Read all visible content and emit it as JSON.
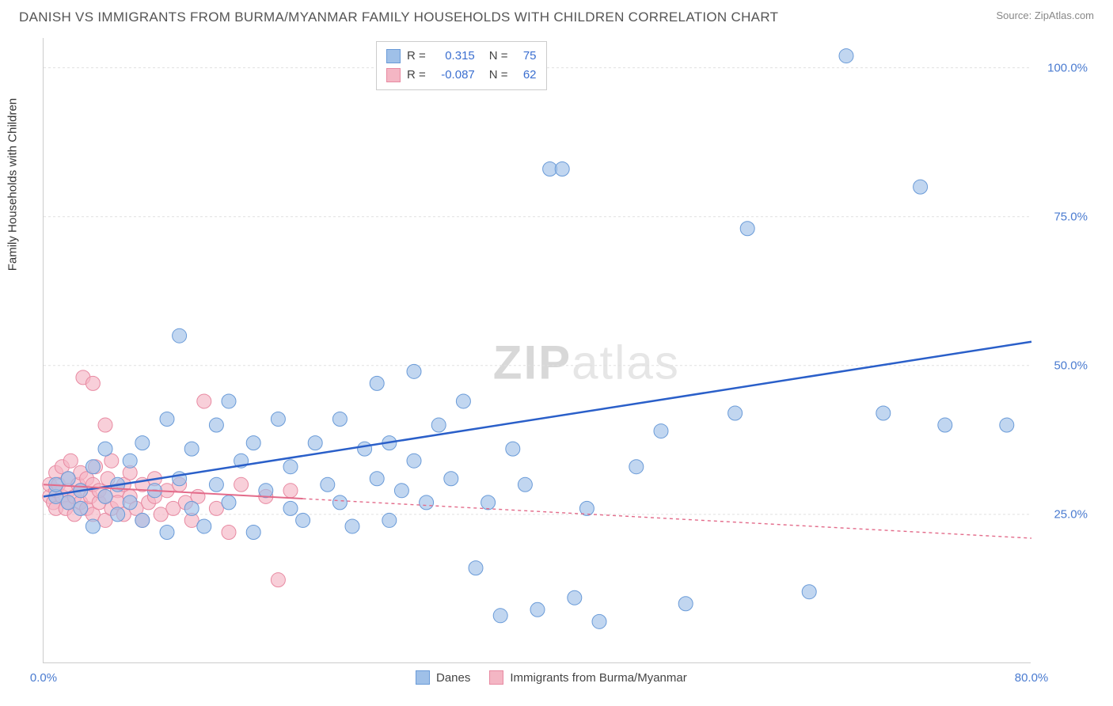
{
  "header": {
    "title": "DANISH VS IMMIGRANTS FROM BURMA/MYANMAR FAMILY HOUSEHOLDS WITH CHILDREN CORRELATION CHART",
    "source": "Source: ZipAtlas.com"
  },
  "chart": {
    "type": "scatter",
    "ylabel": "Family Households with Children",
    "watermark_a": "ZIP",
    "watermark_b": "atlas",
    "xlim": [
      0,
      80
    ],
    "ylim": [
      0,
      105
    ],
    "y_ticks": [
      25,
      50,
      75,
      100
    ],
    "y_tick_labels": [
      "25.0%",
      "50.0%",
      "75.0%",
      "100.0%"
    ],
    "x_ticks": [
      0,
      80
    ],
    "x_tick_labels": [
      "0.0%",
      "80.0%"
    ],
    "background_color": "#ffffff",
    "grid_color": "#e0e0e0",
    "axis_color": "#cccccc",
    "tick_label_color": "#4a7bd0",
    "series": [
      {
        "name": "Danes",
        "marker_color": "#9fc0e8",
        "marker_stroke": "#6a9bd8",
        "marker_opacity": 0.65,
        "marker_radius": 9,
        "line_color": "#2a5fc9",
        "line_width": 2.5,
        "line_dash": "none",
        "R": "0.315",
        "N": "75",
        "trend": {
          "x1": 0,
          "y1": 28,
          "x2": 80,
          "y2": 54,
          "x_solid_end": 80
        },
        "points": [
          [
            1,
            28
          ],
          [
            1,
            30
          ],
          [
            2,
            27
          ],
          [
            2,
            31
          ],
          [
            3,
            29
          ],
          [
            3,
            26
          ],
          [
            4,
            33
          ],
          [
            4,
            23
          ],
          [
            5,
            28
          ],
          [
            5,
            36
          ],
          [
            6,
            30
          ],
          [
            6,
            25
          ],
          [
            7,
            34
          ],
          [
            7,
            27
          ],
          [
            8,
            24
          ],
          [
            8,
            37
          ],
          [
            9,
            29
          ],
          [
            10,
            41
          ],
          [
            10,
            22
          ],
          [
            11,
            55
          ],
          [
            11,
            31
          ],
          [
            12,
            26
          ],
          [
            12,
            36
          ],
          [
            13,
            23
          ],
          [
            14,
            40
          ],
          [
            14,
            30
          ],
          [
            15,
            27
          ],
          [
            15,
            44
          ],
          [
            16,
            34
          ],
          [
            17,
            22
          ],
          [
            17,
            37
          ],
          [
            18,
            29
          ],
          [
            19,
            41
          ],
          [
            20,
            26
          ],
          [
            20,
            33
          ],
          [
            21,
            24
          ],
          [
            22,
            37
          ],
          [
            23,
            30
          ],
          [
            24,
            27
          ],
          [
            24,
            41
          ],
          [
            25,
            23
          ],
          [
            26,
            36
          ],
          [
            27,
            47
          ],
          [
            27,
            31
          ],
          [
            28,
            24
          ],
          [
            28,
            37
          ],
          [
            29,
            29
          ],
          [
            30,
            34
          ],
          [
            30,
            49
          ],
          [
            31,
            27
          ],
          [
            32,
            40
          ],
          [
            33,
            31
          ],
          [
            34,
            44
          ],
          [
            35,
            16
          ],
          [
            36,
            27
          ],
          [
            37,
            8
          ],
          [
            38,
            36
          ],
          [
            39,
            30
          ],
          [
            40,
            9
          ],
          [
            41,
            83
          ],
          [
            42,
            83
          ],
          [
            43,
            11
          ],
          [
            44,
            26
          ],
          [
            45,
            7
          ],
          [
            48,
            33
          ],
          [
            50,
            39
          ],
          [
            52,
            10
          ],
          [
            56,
            42
          ],
          [
            57,
            73
          ],
          [
            62,
            12
          ],
          [
            65,
            102
          ],
          [
            68,
            42
          ],
          [
            71,
            80
          ],
          [
            73,
            40
          ],
          [
            78,
            40
          ]
        ]
      },
      {
        "name": "Immigrants from Burma/Myanmar",
        "marker_color": "#f4b6c4",
        "marker_stroke": "#e88aa2",
        "marker_opacity": 0.65,
        "marker_radius": 9,
        "line_color": "#e36b8a",
        "line_width": 2,
        "line_dash": "4,4",
        "R": "-0.087",
        "N": "62",
        "trend": {
          "x1": 0,
          "y1": 30,
          "x2": 80,
          "y2": 21,
          "x_solid_end": 21
        },
        "points": [
          [
            0.5,
            28
          ],
          [
            0.5,
            30
          ],
          [
            0.8,
            27
          ],
          [
            1,
            29
          ],
          [
            1,
            32
          ],
          [
            1,
            26
          ],
          [
            1.2,
            30
          ],
          [
            1.5,
            28
          ],
          [
            1.5,
            33
          ],
          [
            1.8,
            26
          ],
          [
            2,
            29
          ],
          [
            2,
            31
          ],
          [
            2,
            27
          ],
          [
            2.2,
            34
          ],
          [
            2.5,
            28
          ],
          [
            2.5,
            25
          ],
          [
            2.8,
            30
          ],
          [
            3,
            32
          ],
          [
            3,
            27
          ],
          [
            3,
            29
          ],
          [
            3.2,
            48
          ],
          [
            3.5,
            26
          ],
          [
            3.5,
            31
          ],
          [
            3.8,
            28
          ],
          [
            4,
            47
          ],
          [
            4,
            30
          ],
          [
            4,
            25
          ],
          [
            4.2,
            33
          ],
          [
            4.5,
            27
          ],
          [
            4.5,
            29
          ],
          [
            5,
            40
          ],
          [
            5,
            28
          ],
          [
            5,
            24
          ],
          [
            5.2,
            31
          ],
          [
            5.5,
            26
          ],
          [
            5.5,
            34
          ],
          [
            6,
            29
          ],
          [
            6,
            27
          ],
          [
            6.5,
            30
          ],
          [
            6.5,
            25
          ],
          [
            7,
            32
          ],
          [
            7,
            28
          ],
          [
            7.5,
            26
          ],
          [
            8,
            30
          ],
          [
            8,
            24
          ],
          [
            8.5,
            27
          ],
          [
            9,
            31
          ],
          [
            9,
            28
          ],
          [
            9.5,
            25
          ],
          [
            10,
            29
          ],
          [
            10.5,
            26
          ],
          [
            11,
            30
          ],
          [
            11.5,
            27
          ],
          [
            12,
            24
          ],
          [
            12.5,
            28
          ],
          [
            13,
            44
          ],
          [
            14,
            26
          ],
          [
            15,
            22
          ],
          [
            16,
            30
          ],
          [
            18,
            28
          ],
          [
            19,
            14
          ],
          [
            20,
            29
          ]
        ]
      }
    ],
    "legend_bottom": [
      {
        "label": "Danes",
        "fill": "#9fc0e8",
        "stroke": "#6a9bd8"
      },
      {
        "label": "Immigrants from Burma/Myanmar",
        "fill": "#f4b6c4",
        "stroke": "#e88aa2"
      }
    ]
  }
}
